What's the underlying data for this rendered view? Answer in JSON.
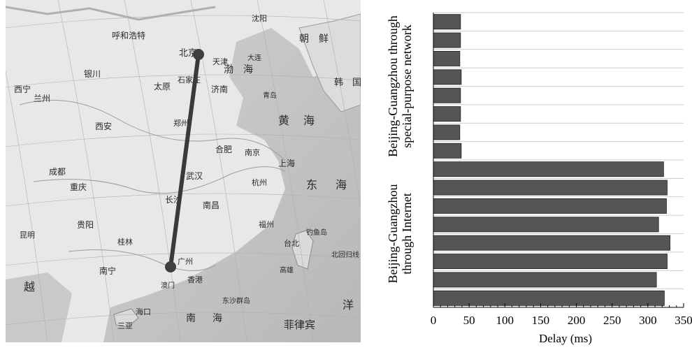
{
  "map": {
    "route": {
      "from": "北京",
      "to": "广州"
    },
    "labels": [
      {
        "id": "beijing",
        "text": "北京"
      },
      {
        "id": "tianjin",
        "text": "天津"
      },
      {
        "id": "shenyang",
        "text": "沈阳"
      },
      {
        "id": "huhehaote",
        "text": "呼和浩特"
      },
      {
        "id": "yinchuan",
        "text": "银川"
      },
      {
        "id": "xining",
        "text": "西宁"
      },
      {
        "id": "lanzhou",
        "text": "兰州"
      },
      {
        "id": "taiyuan",
        "text": "太原"
      },
      {
        "id": "shijiazhuang",
        "text": "石家庄"
      },
      {
        "id": "jinan",
        "text": "济南"
      },
      {
        "id": "xian",
        "text": "西安"
      },
      {
        "id": "zhengzhou",
        "text": "郑州"
      },
      {
        "id": "hefei",
        "text": "合肥"
      },
      {
        "id": "nanjing",
        "text": "南京"
      },
      {
        "id": "shanghai",
        "text": "上海"
      },
      {
        "id": "wuhan",
        "text": "武汉"
      },
      {
        "id": "hangzhou",
        "text": "杭州"
      },
      {
        "id": "chengdu",
        "text": "成都"
      },
      {
        "id": "chongqing",
        "text": "重庆"
      },
      {
        "id": "changsha",
        "text": "长沙"
      },
      {
        "id": "nanchang",
        "text": "南昌"
      },
      {
        "id": "fuzhou",
        "text": "福州"
      },
      {
        "id": "guiyang",
        "text": "贵阳"
      },
      {
        "id": "kunming",
        "text": "昆明"
      },
      {
        "id": "guilin",
        "text": "桂林"
      },
      {
        "id": "nanning",
        "text": "南宁"
      },
      {
        "id": "guangzhou",
        "text": "广州"
      },
      {
        "id": "hongkong",
        "text": "香港"
      },
      {
        "id": "macau",
        "text": "澳门"
      },
      {
        "id": "haikou",
        "text": "海口"
      },
      {
        "id": "sanya",
        "text": "三亚"
      },
      {
        "id": "taibei",
        "text": "台北"
      },
      {
        "id": "gaoxiong",
        "text": "高雄"
      },
      {
        "id": "dalian",
        "text": "大连"
      },
      {
        "id": "qingdao",
        "text": "青岛"
      },
      {
        "id": "huanghai",
        "text": "黄"
      },
      {
        "id": "huanghai2",
        "text": "海"
      },
      {
        "id": "donghai",
        "text": "东"
      },
      {
        "id": "donghai2",
        "text": "海"
      },
      {
        "id": "nanhai",
        "text": "南"
      },
      {
        "id": "nanhai2",
        "text": "海"
      },
      {
        "id": "bohai",
        "text": "渤"
      },
      {
        "id": "bohai2",
        "text": "海"
      },
      {
        "id": "chaoxian",
        "text": "朝　鲜"
      },
      {
        "id": "hanguo",
        "text": "韩　国"
      },
      {
        "id": "feilvbin",
        "text": "菲律宾"
      },
      {
        "id": "yue",
        "text": "越"
      },
      {
        "id": "dongsha",
        "text": "东沙群岛"
      },
      {
        "id": "beihuigui",
        "text": "北回归线"
      },
      {
        "id": "diaoyudao",
        "text": "钓鱼岛"
      },
      {
        "id": "yang",
        "text": "洋"
      }
    ]
  },
  "chart_data": {
    "type": "bar",
    "orientation": "horizontal",
    "xlabel": "Delay (ms)",
    "xlim": [
      0,
      350
    ],
    "xticks": [
      0,
      50,
      100,
      150,
      200,
      250,
      300,
      350
    ],
    "bar_color": "#555555",
    "groups": [
      {
        "label": "Beijing-Guangzhou through special-purpose network",
        "label_lines": [
          "Beijing-Guangzhou through",
          "special-purpose network"
        ],
        "values": [
          38,
          38,
          37,
          39,
          38,
          38,
          37,
          39
        ]
      },
      {
        "label": "Beijing-Guangzhou through Internet",
        "label_lines": [
          "Beijing-Guangzhou",
          "through Internet"
        ],
        "values": [
          322,
          327,
          326,
          315,
          331,
          327,
          312,
          323
        ]
      }
    ]
  }
}
